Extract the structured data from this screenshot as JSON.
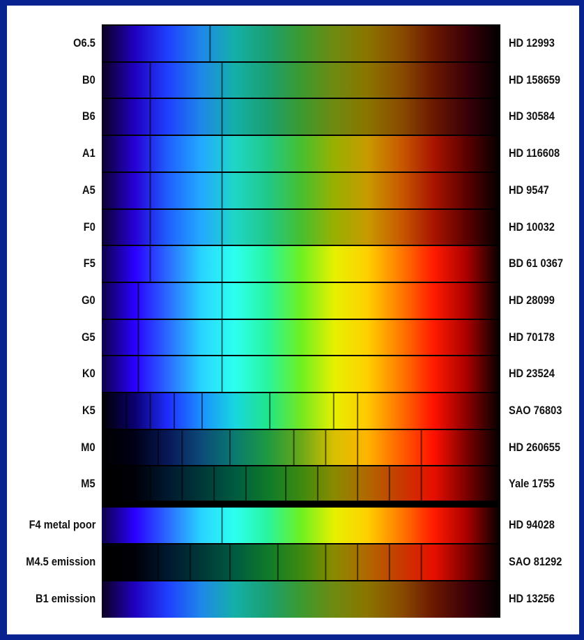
{
  "spectra": [
    {
      "spectral_type": "O6.5",
      "star": "HD 12993",
      "variant": "hot",
      "lines": [
        0.27
      ]
    },
    {
      "spectral_type": "B0",
      "star": "HD 158659",
      "variant": "hot",
      "lines": [
        0.12,
        0.3
      ]
    },
    {
      "spectral_type": "B6",
      "star": "HD 30584",
      "variant": "hot",
      "lines": [
        0.12,
        0.3
      ]
    },
    {
      "spectral_type": "A1",
      "star": "HD 116608",
      "variant": "warm",
      "lines": [
        0.12,
        0.3
      ]
    },
    {
      "spectral_type": "A5",
      "star": "HD 9547",
      "variant": "warm",
      "lines": [
        0.12,
        0.3
      ]
    },
    {
      "spectral_type": "F0",
      "star": "HD 10032",
      "variant": "warm",
      "lines": [
        0.12,
        0.3
      ]
    },
    {
      "spectral_type": "F5",
      "star": "BD 61 0367",
      "variant": "cool",
      "lines": [
        0.12,
        0.3
      ]
    },
    {
      "spectral_type": "G0",
      "star": "HD 28099",
      "variant": "cool",
      "lines": [
        0.09,
        0.3
      ]
    },
    {
      "spectral_type": "G5",
      "star": "HD 70178",
      "variant": "cool",
      "lines": [
        0.09,
        0.3
      ]
    },
    {
      "spectral_type": "K0",
      "star": "HD 23524",
      "variant": "cool",
      "lines": [
        0.09,
        0.3
      ]
    },
    {
      "spectral_type": "K5",
      "star": "SAO 76803",
      "variant": "k5",
      "lines": [
        0.06,
        0.12,
        0.18,
        0.25,
        0.42,
        0.58,
        0.64
      ]
    },
    {
      "spectral_type": "M0",
      "star": "HD 260655",
      "variant": "m",
      "lines": [
        0.05,
        0.14,
        0.2,
        0.32,
        0.48,
        0.56,
        0.64,
        0.8
      ]
    },
    {
      "spectral_type": "M5",
      "star": "Yale 1755",
      "variant": "m5",
      "lines": [
        0.04,
        0.12,
        0.2,
        0.28,
        0.36,
        0.46,
        0.54,
        0.64,
        0.72,
        0.8
      ]
    },
    {
      "spectral_type": "F4 metal poor",
      "star": "HD 94028",
      "variant": "cool",
      "lines": [
        0.3
      ]
    },
    {
      "spectral_type": "M4.5 emission",
      "star": "SAO 81292",
      "variant": "m5",
      "lines": [
        0.04,
        0.14,
        0.22,
        0.32,
        0.44,
        0.56,
        0.64,
        0.72,
        0.8
      ]
    },
    {
      "spectral_type": "B1 emission",
      "star": "HD 13256",
      "variant": "hot",
      "lines": []
    }
  ],
  "palettes": {
    "hot": [
      "#0d0020",
      "#2000c0",
      "#1f40ff",
      "#1e88e8",
      "#14b0a8",
      "#1aa070",
      "#3b9a30",
      "#6f8a10",
      "#8a7500",
      "#8a4c00",
      "#6a1800",
      "#3a0008",
      "#000000"
    ],
    "warm": [
      "#0c0030",
      "#2600d8",
      "#2060ff",
      "#22aaff",
      "#1fd6c6",
      "#20c888",
      "#46c030",
      "#98b000",
      "#c89a00",
      "#c85a00",
      "#a81400",
      "#5a0000",
      "#000000"
    ],
    "cool": [
      "#0e0048",
      "#2a00ff",
      "#2a6cff",
      "#29d4ff",
      "#2dfff0",
      "#28f5a0",
      "#6ef020",
      "#e6f000",
      "#ffd000",
      "#ff7a00",
      "#ff1a00",
      "#a80000",
      "#000000"
    ],
    "k5": [
      "#000000",
      "#0a0070",
      "#1f2cff",
      "#1a90ff",
      "#18d6e0",
      "#20e68a",
      "#72e820",
      "#e6f000",
      "#ffc800",
      "#ff7000",
      "#ff1000",
      "#8a0000",
      "#000000"
    ],
    "m": [
      "#000000",
      "#000018",
      "#081858",
      "#0c4a78",
      "#0a7a70",
      "#1e9a40",
      "#6aa818",
      "#d8c000",
      "#ffb400",
      "#ff6000",
      "#ff1000",
      "#7a0000",
      "#000000"
    ],
    "m5": [
      "#000000",
      "#000008",
      "#001830",
      "#003838",
      "#005a40",
      "#0e7a2a",
      "#3c8a10",
      "#8a8a00",
      "#b06800",
      "#c83a00",
      "#e60e00",
      "#7a0000",
      "#000000"
    ]
  }
}
